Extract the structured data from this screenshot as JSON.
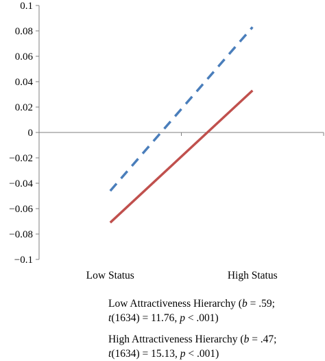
{
  "chart_data": {
    "type": "line",
    "categories": [
      "Low Status",
      "High Status"
    ],
    "ylim": [
      -0.1,
      0.1
    ],
    "y_ticks": [
      "0.1",
      "0.08",
      "0.06",
      "0.04",
      "0.02",
      "0",
      "−0.02",
      "−0.04",
      "−0.06",
      "−0.08",
      "−0.1"
    ],
    "grid": false,
    "legend_position": "bottom",
    "series": [
      {
        "name": "Low Attractiveness Hierarchy",
        "color": "#4A7EBB",
        "line_style": "dashed",
        "values": [
          -0.046,
          0.083
        ]
      },
      {
        "name": "High Attractiveness Hierarchy",
        "color": "#C0504D",
        "line_style": "solid",
        "values": [
          -0.071,
          0.033
        ]
      }
    ]
  },
  "legend": [
    {
      "name_lead": "Low Attractiveness Hierarchy (",
      "b_label": "b",
      "b_value": " = .59;",
      "t_label": "t",
      "t_value": "(1634) = 11.76, ",
      "p_label": "p",
      "p_value": " < .001)"
    },
    {
      "name_lead": "High Attractiveness Hierarchy (",
      "b_label": "b",
      "b_value": " = .47;",
      "t_label": "t",
      "t_value": "(1634) = 15.13, ",
      "p_label": "p",
      "p_value": " < .001)"
    }
  ]
}
